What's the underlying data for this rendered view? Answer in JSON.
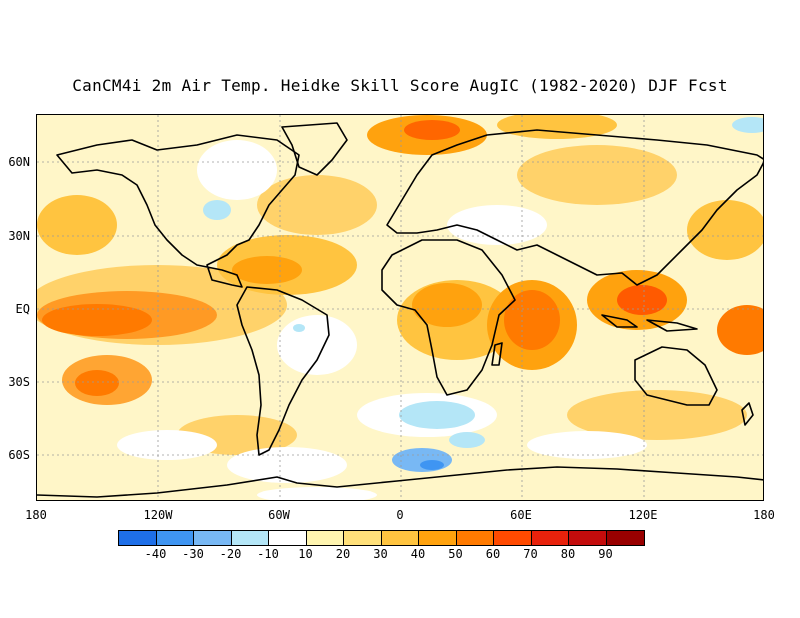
{
  "title": "CanCM4i 2m Air Temp. Heidke Skill Score AugIC (1982-2020) DJF Fcst",
  "lat_labels": [
    "60N",
    "30N",
    "EQ",
    "30S",
    "60S"
  ],
  "lon_labels": [
    "180",
    "120W",
    "60W",
    "0",
    "60E",
    "120E",
    "180"
  ],
  "colorbar": {
    "colors": [
      "#1e6fe8",
      "#3f95f2",
      "#78b8f4",
      "#b4e6f7",
      "#ffffff",
      "#fff5b0",
      "#ffe07a",
      "#ffc440",
      "#ffa20e",
      "#ff7a00",
      "#ff4a00",
      "#e8220c",
      "#c40c0c",
      "#990000"
    ],
    "tick_labels": [
      "-40",
      "-30",
      "-20",
      "-10",
      "10",
      "20",
      "30",
      "40",
      "50",
      "60",
      "70",
      "80",
      "90"
    ]
  }
}
